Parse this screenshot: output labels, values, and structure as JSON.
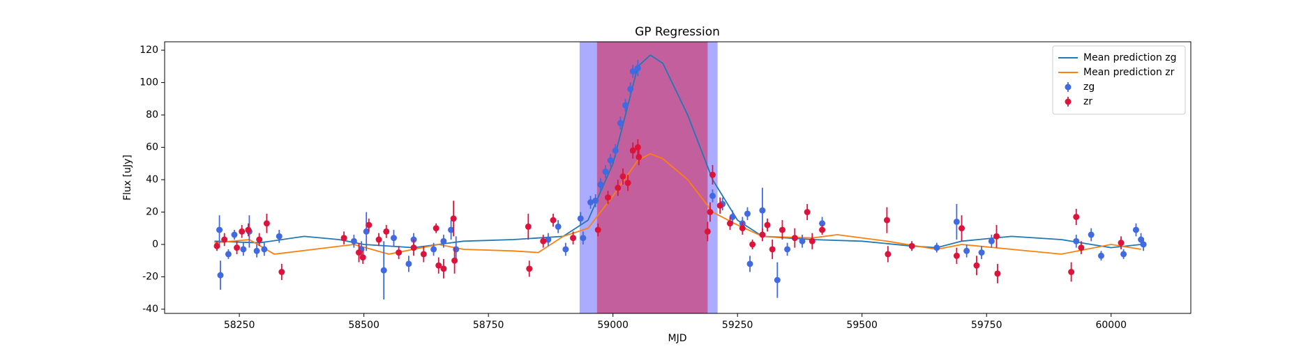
{
  "chart_data": {
    "type": "line",
    "title": "GP Regression",
    "xlabel": "MJD",
    "ylabel": "Flux [uJy]",
    "xlim": [
      58100,
      60160
    ],
    "ylim": [
      -42.6,
      125.2
    ],
    "xticks": [
      58250,
      58500,
      58750,
      59000,
      59250,
      59500,
      59750,
      60000
    ],
    "yticks": [
      -40,
      -20,
      0,
      20,
      40,
      60,
      80,
      100,
      120
    ],
    "legend": "upper right",
    "spans": [
      {
        "xlim": [
          58933,
          59210
        ],
        "color": "#0000ff",
        "alpha": 0.33
      },
      {
        "xlim": [
          58968,
          59190
        ],
        "color": "#dc143c",
        "alpha": 0.5
      }
    ],
    "series": [
      {
        "name": "Mean prediction zg",
        "color": "#1f77b4",
        "x": [
          58200,
          58290,
          58380,
          58450,
          58500,
          58600,
          58700,
          58800,
          58900,
          58950,
          59000,
          59025,
          59050,
          59075,
          59100,
          59150,
          59200,
          59250,
          59300,
          59400,
          59500,
          59600,
          59650,
          59700,
          59800,
          59900,
          60000,
          60060
        ],
        "values": [
          2,
          1,
          5,
          3,
          0,
          -2,
          2,
          3,
          5,
          15,
          50,
          80,
          110,
          117,
          112,
          80,
          40,
          15,
          5,
          3,
          2,
          -1,
          -2,
          2,
          5,
          3,
          -2,
          0
        ]
      },
      {
        "name": "Mean prediction zr",
        "color": "#ff7f0e",
        "x": [
          58200,
          58270,
          58320,
          58400,
          58480,
          58550,
          58650,
          58700,
          58800,
          58850,
          58900,
          58950,
          59000,
          59050,
          59075,
          59100,
          59150,
          59200,
          59250,
          59300,
          59400,
          59450,
          59550,
          59650,
          59700,
          59800,
          59900,
          60000,
          60060
        ],
        "values": [
          1,
          3,
          -6,
          -3,
          0,
          -6,
          0,
          -3,
          -4,
          -5,
          5,
          10,
          30,
          52,
          56,
          53,
          40,
          20,
          12,
          5,
          4,
          6,
          2,
          -3,
          0,
          -3,
          -6,
          0,
          -3
        ]
      }
    ],
    "points": [
      {
        "name": "zg",
        "color": "#4169e1",
        "x": [
          58210,
          58212,
          58228,
          58240,
          58258,
          58270,
          58285,
          58300,
          58330,
          58480,
          58495,
          58505,
          58540,
          58560,
          58590,
          58600,
          58640,
          58660,
          58675,
          58685,
          58870,
          58890,
          58905,
          58935,
          58940,
          58955,
          58965,
          58975,
          58985,
          58995,
          59005,
          59015,
          59025,
          59035,
          59040,
          59050,
          59200,
          59220,
          59240,
          59260,
          59270,
          59275,
          59300,
          59330,
          59350,
          59380,
          59420,
          59650,
          59690,
          59710,
          59740,
          59760,
          59930,
          59960,
          59980,
          60025,
          60050,
          60060,
          60065
        ],
        "values": [
          9,
          -19,
          -6,
          6,
          -3,
          8,
          -4,
          -3,
          5,
          2,
          -3,
          8,
          -16,
          4,
          -12,
          3,
          -3,
          2,
          9,
          -3,
          3,
          11,
          -3,
          16,
          4,
          26,
          27,
          37,
          45,
          52,
          58,
          75,
          86,
          96,
          107,
          109,
          30,
          25,
          17,
          13,
          19,
          -12,
          21,
          -22,
          -3,
          2,
          13,
          -2,
          14,
          -4,
          -5,
          2,
          2,
          6,
          -7,
          -6,
          9,
          3,
          0
        ],
        "errors": [
          9,
          9,
          3,
          3,
          4,
          10,
          4,
          4,
          4,
          4,
          5,
          12,
          18,
          5,
          5,
          4,
          4,
          4,
          6,
          8,
          4,
          4,
          4,
          4,
          4,
          4,
          4,
          4,
          4,
          4,
          4,
          4,
          4,
          4,
          4,
          5,
          4,
          4,
          4,
          4,
          4,
          5,
          14,
          11,
          4,
          4,
          4,
          3,
          11,
          4,
          4,
          4,
          4,
          4,
          3,
          3,
          4,
          4,
          4
        ]
      },
      {
        "name": "zr",
        "color": "#dc143c",
        "x": [
          58205,
          58220,
          58245,
          58255,
          58268,
          58290,
          58305,
          58335,
          58460,
          58490,
          58498,
          58510,
          58530,
          58545,
          58570,
          58600,
          58620,
          58645,
          58650,
          58660,
          58680,
          58682,
          58830,
          58832,
          58860,
          58880,
          58920,
          58970,
          58990,
          59010,
          59020,
          59030,
          59040,
          59050,
          59052,
          59190,
          59195,
          59200,
          59215,
          59235,
          59260,
          59280,
          59300,
          59310,
          59320,
          59340,
          59365,
          59390,
          59400,
          59420,
          59550,
          59552,
          59600,
          59690,
          59700,
          59730,
          59770,
          59772,
          59920,
          59930,
          59940,
          60020
        ],
        "values": [
          -1,
          3,
          -2,
          8,
          9,
          3,
          13,
          -17,
          4,
          -5,
          -8,
          12,
          3,
          8,
          -5,
          -2,
          -6,
          10,
          -13,
          -15,
          16,
          -10,
          11,
          -15,
          2,
          15,
          4,
          9,
          29,
          35,
          42,
          38,
          58,
          60,
          54,
          8,
          20,
          43,
          24,
          13,
          10,
          0,
          6,
          12,
          -3,
          9,
          4,
          20,
          2,
          9,
          15,
          -6,
          -1,
          -7,
          10,
          -13,
          5,
          -18,
          -17,
          17,
          -2,
          1
        ],
        "errors": [
          3,
          4,
          4,
          4,
          4,
          4,
          6,
          5,
          4,
          6,
          4,
          4,
          4,
          4,
          4,
          5,
          5,
          3,
          5,
          6,
          11,
          8,
          8,
          5,
          4,
          4,
          4,
          4,
          4,
          5,
          5,
          5,
          5,
          5,
          5,
          6,
          6,
          6,
          5,
          4,
          4,
          3,
          4,
          4,
          6,
          6,
          6,
          5,
          5,
          3,
          8,
          5,
          3,
          5,
          8,
          6,
          7,
          6,
          6,
          5,
          4,
          4
        ]
      }
    ]
  }
}
